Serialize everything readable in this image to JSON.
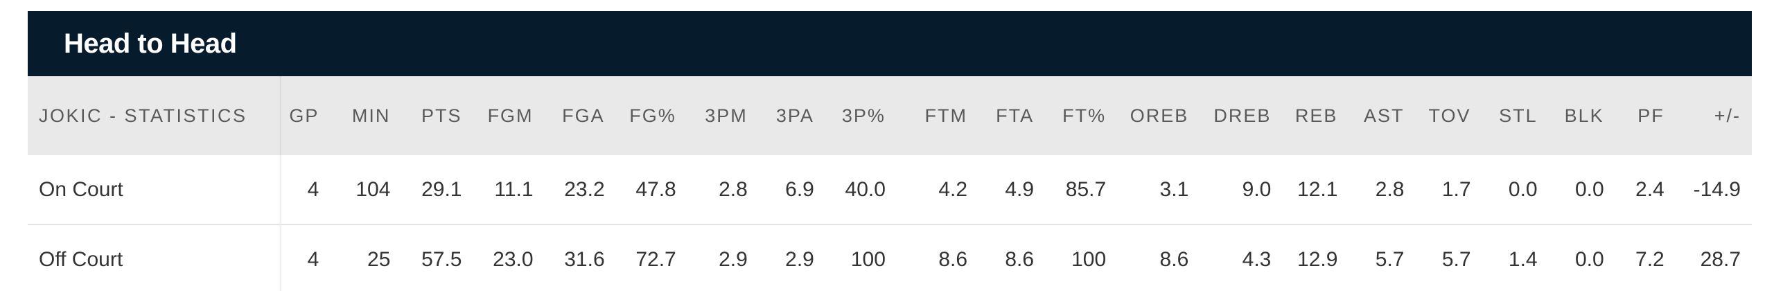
{
  "header": {
    "title": "Head to Head"
  },
  "table": {
    "label_header": "JOKIC - STATISTICS",
    "columns": [
      "GP",
      "MIN",
      "PTS",
      "FGM",
      "FGA",
      "FG%",
      "3PM",
      "3PA",
      "3P%",
      "FTM",
      "FTA",
      "FT%",
      "OREB",
      "DREB",
      "REB",
      "AST",
      "TOV",
      "STL",
      "BLK",
      "PF",
      "+/-"
    ],
    "rows": [
      {
        "label": "On Court",
        "values": [
          "4",
          "104",
          "29.1",
          "11.1",
          "23.2",
          "47.8",
          "2.8",
          "6.9",
          "40.0",
          "4.2",
          "4.9",
          "85.7",
          "3.1",
          "9.0",
          "12.1",
          "2.8",
          "1.7",
          "0.0",
          "0.0",
          "2.4",
          "-14.9"
        ]
      },
      {
        "label": "Off Court",
        "values": [
          "4",
          "25",
          "57.5",
          "23.0",
          "31.6",
          "72.7",
          "2.9",
          "2.9",
          "100",
          "8.6",
          "8.6",
          "100",
          "8.6",
          "4.3",
          "12.9",
          "5.7",
          "5.7",
          "1.4",
          "0.0",
          "7.2",
          "28.7"
        ]
      }
    ]
  },
  "colors": {
    "header_bg": "#061c2c",
    "column_header_bg": "#e9e9e9",
    "text": "#333333"
  }
}
